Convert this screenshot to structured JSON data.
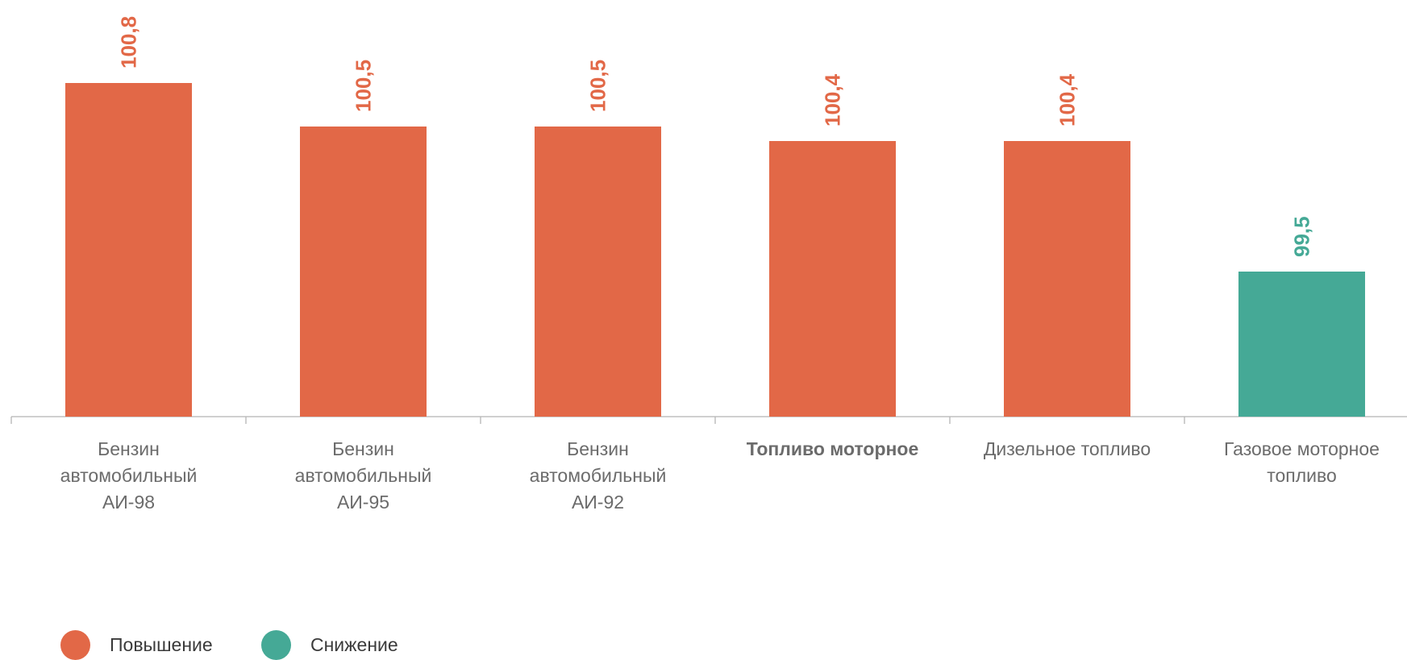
{
  "chart_data": {
    "type": "bar",
    "categories": [
      [
        "Бензин",
        "автомобильный",
        "АИ-98"
      ],
      [
        "Бензин",
        "автомобильный",
        "АИ-95"
      ],
      [
        "Бензин",
        "автомобильный",
        "АИ-92"
      ],
      [
        "Топливо моторное"
      ],
      [
        "Дизельное топливо"
      ],
      [
        "Газовое моторное",
        "топливо"
      ]
    ],
    "bold_categories": [
      3
    ],
    "values": [
      100.8,
      100.5,
      100.5,
      100.4,
      100.4,
      99.5
    ],
    "value_labels": [
      "100,8",
      "100,5",
      "100,5",
      "100,4",
      "100,4",
      "99,5"
    ],
    "value_kind": [
      "increase",
      "increase",
      "increase",
      "increase",
      "increase",
      "decrease"
    ],
    "ylim": [
      98.5,
      101.15
    ],
    "grid": false,
    "legend_position": "bottom-left"
  },
  "legend": {
    "items": [
      {
        "key": "increase",
        "label": "Повышение",
        "color": "#E26847"
      },
      {
        "key": "decrease",
        "label": "Снижение",
        "color": "#45A996"
      }
    ]
  },
  "colors": {
    "increase": "#E26847",
    "decrease": "#45A996",
    "axis": "#b5b5b5",
    "category_text": "#6b6b6b"
  }
}
